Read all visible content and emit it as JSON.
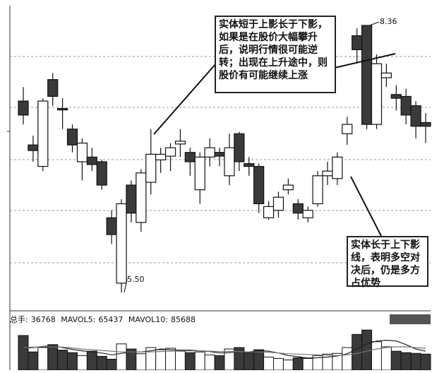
{
  "chart_data": {
    "type": "candlestick",
    "price_range": [
      5.5,
      8.36
    ],
    "high_label": "8.36",
    "low_label": "5.50",
    "candles": [
      {
        "o": 7.55,
        "c": 7.4,
        "h": 7.7,
        "l": 7.3,
        "up": false
      },
      {
        "o": 7.08,
        "c": 7.02,
        "h": 7.18,
        "l": 6.9,
        "up": false
      },
      {
        "o": 6.85,
        "c": 7.55,
        "h": 7.58,
        "l": 6.8,
        "up": true
      },
      {
        "o": 7.78,
        "c": 7.6,
        "h": 7.85,
        "l": 7.5,
        "up": false
      },
      {
        "o": 7.47,
        "c": 7.46,
        "h": 7.58,
        "l": 7.25,
        "up": false
      },
      {
        "o": 7.25,
        "c": 7.08,
        "h": 7.3,
        "l": 7.0,
        "up": false
      },
      {
        "o": 6.9,
        "c": 7.1,
        "h": 7.15,
        "l": 6.7,
        "up": true
      },
      {
        "o": 6.95,
        "c": 6.87,
        "h": 7.05,
        "l": 6.8,
        "up": false
      },
      {
        "o": 6.9,
        "c": 6.65,
        "h": 6.92,
        "l": 6.6,
        "up": false
      },
      {
        "o": 6.3,
        "c": 6.12,
        "h": 6.38,
        "l": 6.02,
        "up": false
      },
      {
        "o": 5.6,
        "c": 6.45,
        "h": 6.5,
        "l": 5.5,
        "up": true
      },
      {
        "o": 6.65,
        "c": 6.35,
        "h": 6.7,
        "l": 6.25,
        "up": false
      },
      {
        "o": 6.25,
        "c": 6.78,
        "h": 6.82,
        "l": 6.15,
        "up": true
      },
      {
        "o": 6.68,
        "c": 6.98,
        "h": 7.25,
        "l": 6.55,
        "up": true
      },
      {
        "o": 6.92,
        "c": 6.98,
        "h": 7.05,
        "l": 6.78,
        "up": true
      },
      {
        "o": 6.96,
        "c": 7.05,
        "h": 7.1,
        "l": 6.8,
        "up": true
      },
      {
        "o": 7.09,
        "c": 7.12,
        "h": 7.25,
        "l": 6.95,
        "up": true
      },
      {
        "o": 7.0,
        "c": 6.9,
        "h": 7.05,
        "l": 6.75,
        "up": false
      },
      {
        "o": 6.6,
        "c": 6.95,
        "h": 7.0,
        "l": 6.45,
        "up": true
      },
      {
        "o": 6.95,
        "c": 7.05,
        "h": 7.15,
        "l": 6.85,
        "up": true
      },
      {
        "o": 7.0,
        "c": 6.96,
        "h": 7.05,
        "l": 6.85,
        "up": false
      },
      {
        "o": 6.75,
        "c": 7.05,
        "h": 7.2,
        "l": 6.65,
        "up": true
      },
      {
        "o": 7.2,
        "c": 6.9,
        "h": 7.22,
        "l": 6.8,
        "up": false
      },
      {
        "o": 6.88,
        "c": 6.85,
        "h": 6.95,
        "l": 6.75,
        "up": false
      },
      {
        "o": 6.85,
        "c": 6.45,
        "h": 6.88,
        "l": 6.35,
        "up": false
      },
      {
        "o": 6.3,
        "c": 6.42,
        "h": 6.48,
        "l": 6.28,
        "up": true
      },
      {
        "o": 6.38,
        "c": 6.52,
        "h": 6.58,
        "l": 6.3,
        "up": true
      },
      {
        "o": 6.6,
        "c": 6.65,
        "h": 6.72,
        "l": 6.55,
        "up": true
      },
      {
        "o": 6.45,
        "c": 6.35,
        "h": 6.5,
        "l": 6.28,
        "up": false
      },
      {
        "o": 6.3,
        "c": 6.38,
        "h": 6.42,
        "l": 6.25,
        "up": true
      },
      {
        "o": 6.45,
        "c": 6.75,
        "h": 6.8,
        "l": 6.42,
        "up": true
      },
      {
        "o": 6.75,
        "c": 6.8,
        "h": 6.9,
        "l": 6.65,
        "up": true
      },
      {
        "o": 6.72,
        "c": 6.95,
        "h": 7.0,
        "l": 6.65,
        "up": true
      },
      {
        "o": 7.2,
        "c": 7.3,
        "h": 7.38,
        "l": 7.08,
        "up": true
      },
      {
        "o": 8.25,
        "c": 8.1,
        "h": 8.33,
        "l": 7.95,
        "up": false
      },
      {
        "o": 8.36,
        "c": 7.3,
        "h": 8.36,
        "l": 7.25,
        "up": false
      },
      {
        "o": 7.3,
        "c": 7.95,
        "h": 8.05,
        "l": 7.25,
        "up": true
      },
      {
        "o": 7.8,
        "c": 7.85,
        "h": 7.95,
        "l": 7.7,
        "up": true
      },
      {
        "o": 7.62,
        "c": 7.58,
        "h": 7.72,
        "l": 7.45,
        "up": false
      },
      {
        "o": 7.6,
        "c": 7.4,
        "h": 7.68,
        "l": 7.3,
        "up": false
      },
      {
        "o": 7.5,
        "c": 7.28,
        "h": 7.55,
        "l": 7.15,
        "up": false
      },
      {
        "o": 7.32,
        "c": 7.28,
        "h": 7.42,
        "l": 7.1,
        "up": false
      }
    ],
    "volume": {
      "header": [
        {
          "label": "总手:",
          "value": "36768"
        },
        {
          "label": "MAVOL5:",
          "value": "65437"
        },
        {
          "label": "MAVOL10:",
          "value": "85688"
        }
      ],
      "values": [
        95000,
        50000,
        62000,
        70000,
        55000,
        48000,
        40000,
        52000,
        38000,
        30000,
        72000,
        58000,
        45000,
        62000,
        56000,
        60000,
        52000,
        48000,
        50000,
        42000,
        40000,
        58000,
        62000,
        48000,
        56000,
        36000,
        32000,
        28000,
        34000,
        32000,
        40000,
        44000,
        46000,
        62000,
        98000,
        110000,
        78000,
        64000,
        52000,
        48000,
        46000,
        44000
      ],
      "ma5": [
        60000,
        62000,
        65000,
        67000,
        62000,
        57000,
        53000,
        50000,
        47000,
        42000,
        46000,
        50000,
        50000,
        53000,
        58000,
        56000,
        55000,
        55000,
        53000,
        51000,
        47000,
        48000,
        51000,
        50000,
        54000,
        52000,
        47000,
        40000,
        37000,
        33000,
        34000,
        36000,
        39000,
        45000,
        58000,
        72000,
        80000,
        82000,
        80000,
        70000,
        58000,
        52000
      ],
      "ma10": [
        62000,
        63000,
        64000,
        64000,
        63000,
        61000,
        58000,
        56000,
        54000,
        52000,
        50000,
        50000,
        50000,
        50000,
        51000,
        52000,
        53000,
        53000,
        53000,
        52000,
        51000,
        51000,
        51000,
        50000,
        50000,
        49000,
        47000,
        45000,
        44000,
        43000,
        42000,
        41000,
        40000,
        42000,
        46000,
        52000,
        58000,
        62000,
        64000,
        64000,
        62000,
        60000
      ]
    },
    "annotations": [
      {
        "text": "实体短于上影长于下影，如果是在股价大幅攀升后，说明行情很可能逆转；出现在上升途中，则股价有可能继续上涨"
      },
      {
        "text": "实体长于上下影线，表明多空对决后，仍是多方占优势"
      }
    ]
  },
  "colors": {
    "background": "#ffffff",
    "bear_fill": "#3a3a3a",
    "bull_fill": "#ffffff",
    "outline": "#111111",
    "grid": "#9a9a9a",
    "header_bar": "#555555"
  }
}
